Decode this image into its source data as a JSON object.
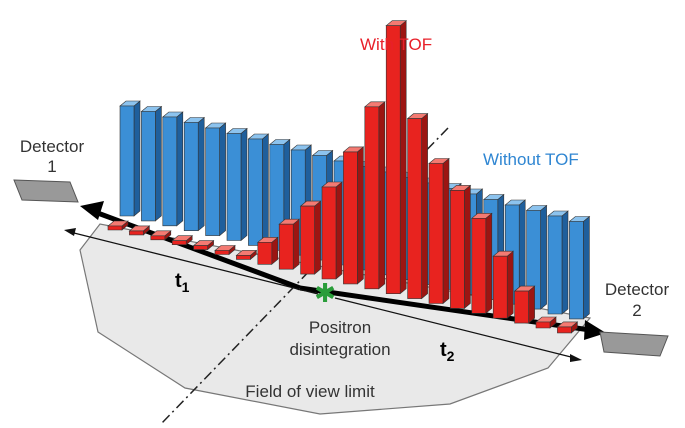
{
  "labels": {
    "with_tof": "With TOF",
    "without_tof": "Without TOF",
    "detector_1": {
      "name": "Detector",
      "number": "1"
    },
    "detector_2": {
      "name": "Detector",
      "number": "2"
    },
    "t1": {
      "symbol": "t",
      "index": "1"
    },
    "t2": {
      "symbol": "t",
      "index": "2"
    },
    "positron": {
      "line1": "Positron",
      "line2": "disintegration"
    },
    "field_of_view": "Field of view limit"
  }
}
